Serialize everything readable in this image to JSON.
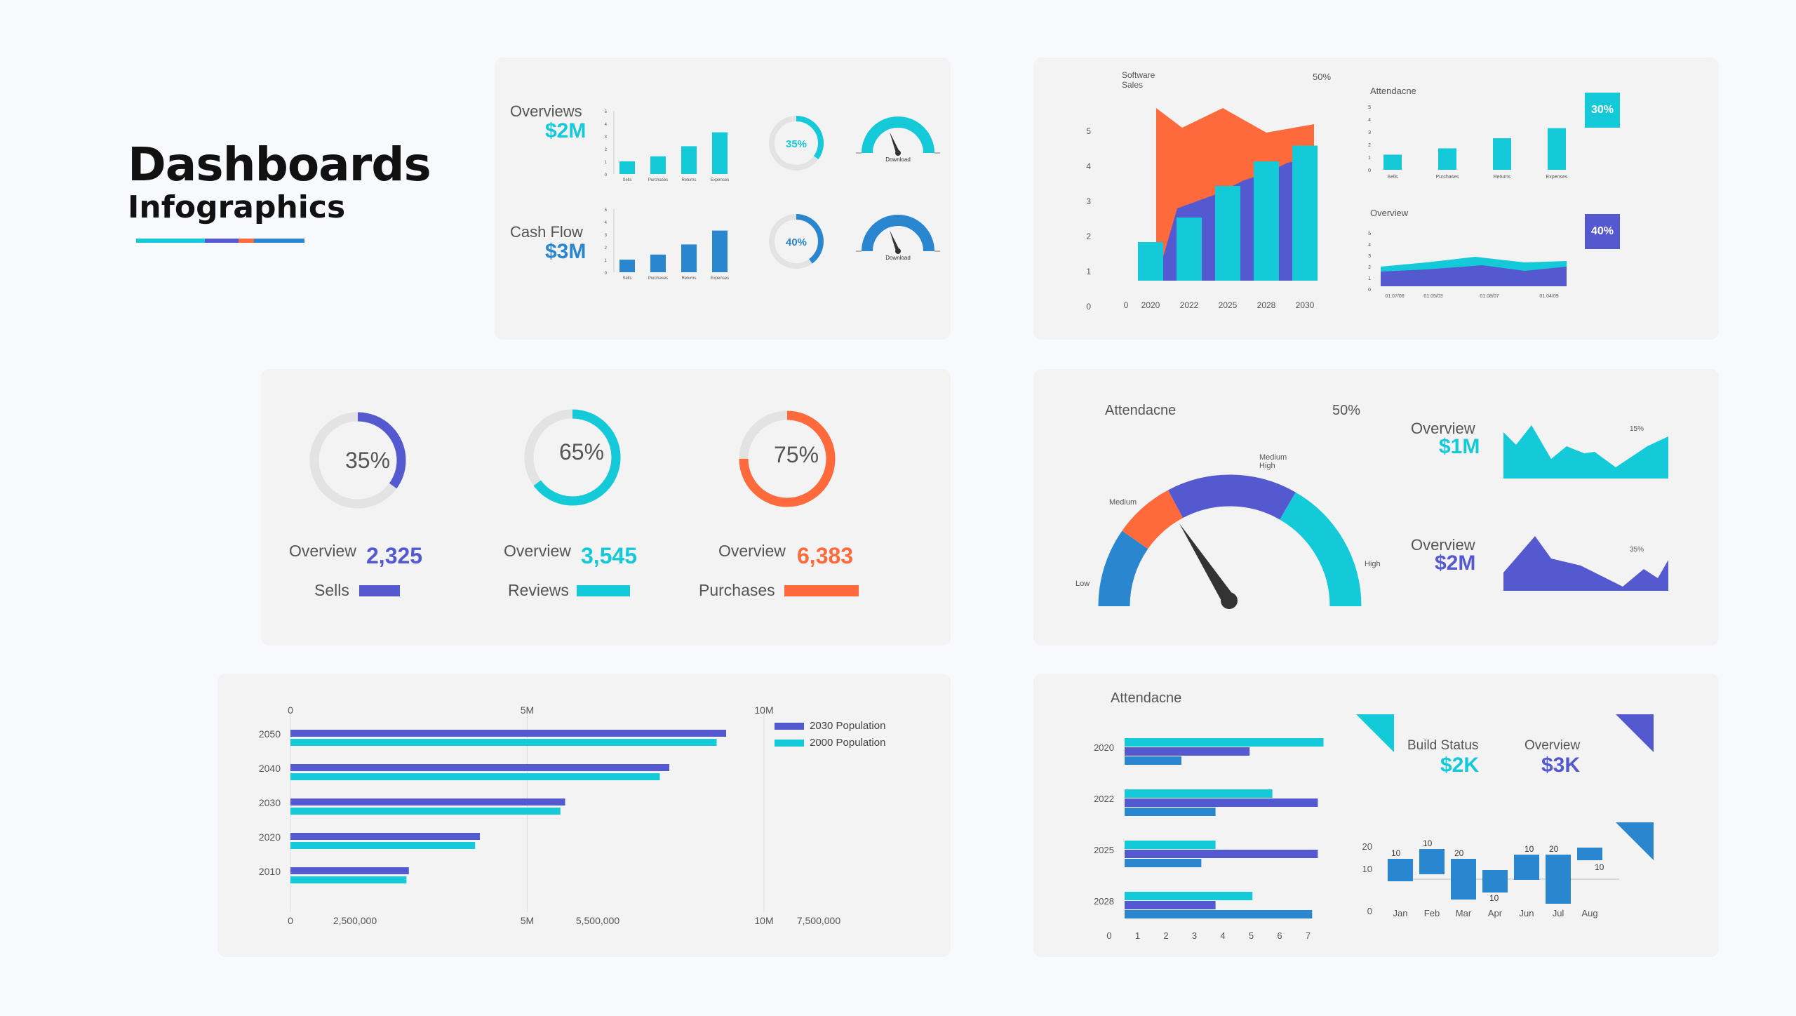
{
  "colors": {
    "cyan": "#14cad9",
    "indigo": "#5559cf",
    "orange": "#ff6a3d",
    "blue": "#2a86cf",
    "gray": "#e3e3e3"
  },
  "header": {
    "title": "Dashboards",
    "subtitle": "Infographics"
  },
  "card1": {
    "overviews_label": "Overviews",
    "overviews_value": "$2M",
    "cashflow_label": "Cash Flow",
    "cashflow_value": "$3M",
    "mini_ticks": [
      "0",
      "1",
      "2",
      "3",
      "4",
      "5"
    ],
    "mini_cats": [
      "Sells",
      "Purchases",
      "Returns",
      "Expenses"
    ],
    "ring1_label": "35%",
    "ring1_pct": 35,
    "ring2_label": "40%",
    "ring2_pct": 40,
    "gauge_label": "Download"
  },
  "card2": {
    "software_sales_label": "Software Sales",
    "pct_top": "50%",
    "attendance_label": "Attendacne",
    "overview_label": "Overview",
    "badge1": "30%",
    "badge2": "40%",
    "yticks": [
      "0",
      "1",
      "2",
      "3",
      "4",
      "5"
    ],
    "mini_ticks": [
      "0",
      "1",
      "2",
      "3",
      "4",
      "5"
    ],
    "mini_cats": [
      "Sells",
      "Purchases",
      "Returns",
      "Expenses"
    ],
    "dates": [
      "01.07/06",
      "01.05/03",
      "01.08/07",
      "01.04/09"
    ]
  },
  "card3": {
    "items": [
      {
        "pct": "35%",
        "label": "Overview",
        "value": "2,325",
        "name": "Sells"
      },
      {
        "pct": "65%",
        "label": "Overview",
        "value": "3,545",
        "name": "Reviews"
      },
      {
        "pct": "75%",
        "label": "Overview",
        "value": "6,383",
        "name": "Purchases"
      }
    ]
  },
  "card4": {
    "attendance_label": "Attendacne",
    "pct_label": "50%",
    "gauge_labels": {
      "low": "Low",
      "medium": "Medium",
      "medium_high_1": "Medium",
      "medium_high_2": "High",
      "high": "High"
    },
    "overview1_label": "Overview",
    "overview1_value": "$1M",
    "overview1_pct": "15%",
    "overview2_label": "Overview",
    "overview2_value": "$2M",
    "overview2_pct": "35%"
  },
  "card5": {
    "top_ticks": [
      "0",
      "5M",
      "10M"
    ],
    "bottom_ticks": [
      "0",
      "2,500,000",
      "5M",
      "5,500,000",
      "10M",
      "7,500,000"
    ],
    "legend": [
      "2030 Population",
      "2000 Population"
    ]
  },
  "card6": {
    "attendance_label": "Attendacne",
    "build_status_label": "Build Status",
    "build_status_value": "$2K",
    "overview_label": "Overview",
    "overview_value": "$3K",
    "hbar_xticks": [
      "0",
      "1",
      "2",
      "3",
      "4",
      "5",
      "6",
      "7"
    ],
    "wf_yticks": [
      "0",
      "10",
      "20"
    ]
  },
  "chart_data": [
    {
      "type": "bar",
      "title": "Overviews",
      "categories": [
        "Sells",
        "Purchases",
        "Returns",
        "Expenses"
      ],
      "values": [
        1,
        1.4,
        2.2,
        3.3
      ],
      "ylim": [
        0,
        5
      ]
    },
    {
      "type": "bar",
      "title": "Cash Flow",
      "categories": [
        "Sells",
        "Purchases",
        "Returns",
        "Expenses"
      ],
      "values": [
        1,
        1.4,
        2.2,
        3.3
      ],
      "ylim": [
        0,
        5
      ]
    },
    {
      "type": "bar",
      "title": "Software Sales",
      "categories": [
        "2020",
        "2022",
        "2025",
        "2028",
        "2030"
      ],
      "values": [
        1.1,
        1.8,
        2.7,
        3.4,
        3.85
      ],
      "ylim": [
        0,
        5
      ]
    },
    {
      "type": "bar",
      "title": "Attendacne",
      "categories": [
        "Sells",
        "Purchases",
        "Returns",
        "Expenses"
      ],
      "values": [
        1.2,
        1.7,
        2.5,
        3.3
      ],
      "ylim": [
        0,
        5
      ]
    },
    {
      "type": "bar",
      "orientation": "horizontal",
      "categories": [
        "2050",
        "2040",
        "2030",
        "2020",
        "2010"
      ],
      "series": [
        {
          "name": "2030 Population",
          "values": [
            9.2,
            8.0,
            5.8,
            4.0,
            2.5
          ]
        },
        {
          "name": "2000 Population",
          "values": [
            9.0,
            7.8,
            5.7,
            3.9,
            2.45
          ]
        }
      ],
      "xlim": [
        0,
        10
      ]
    },
    {
      "type": "bar",
      "orientation": "horizontal",
      "title": "Attendacne",
      "categories": [
        "2020",
        "2022",
        "2025",
        "2028"
      ],
      "series": [
        {
          "values": [
            7,
            5.2,
            3.2,
            4.5
          ]
        },
        {
          "values": [
            4.4,
            6.8,
            6.8,
            3.2
          ]
        },
        {
          "values": [
            2,
            3.2,
            2.7,
            6.6
          ]
        }
      ],
      "xlim": [
        0,
        7
      ]
    },
    {
      "type": "bar",
      "subtype": "waterfall",
      "categories": [
        "Jan",
        "Feb",
        "Mar",
        "Apr",
        "Jun",
        "Jul",
        "Aug"
      ],
      "data_labels": [
        "10",
        "10",
        "20",
        "10",
        "10",
        "20",
        "10"
      ],
      "ylim": [
        0,
        20
      ]
    }
  ]
}
